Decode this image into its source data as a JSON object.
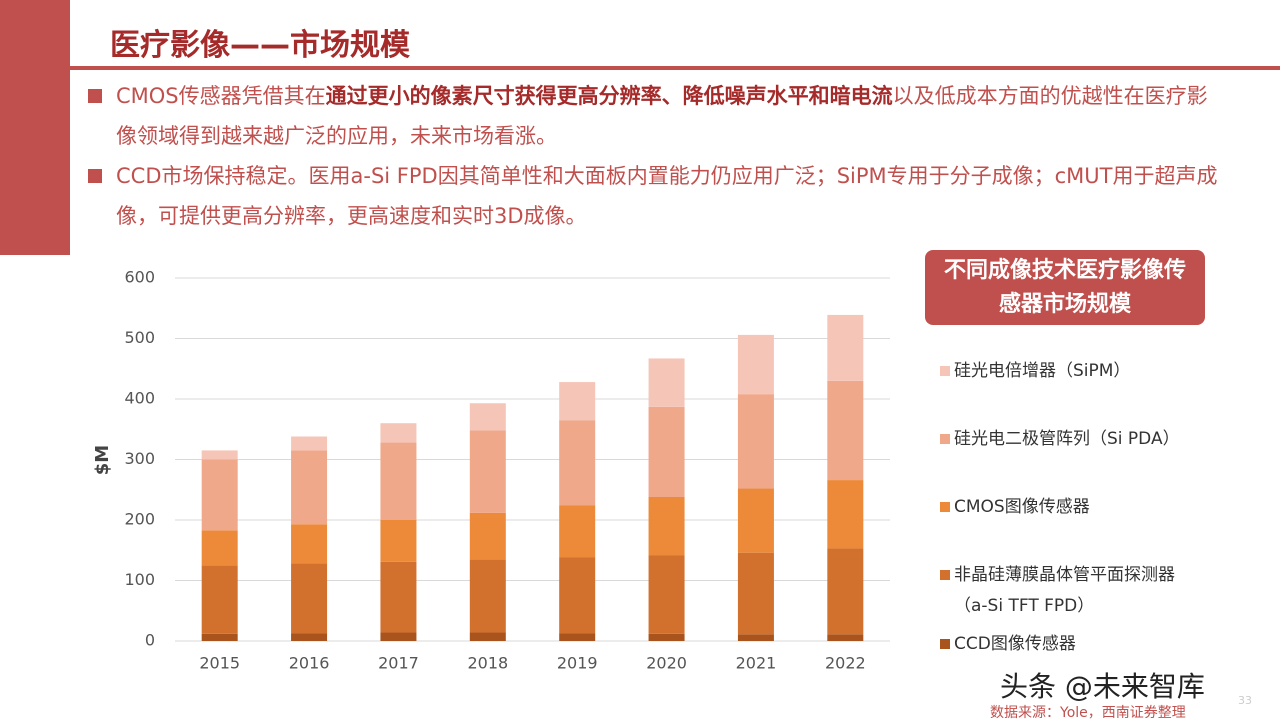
{
  "header": {
    "title": "医疗影像——市场规模"
  },
  "bullets": [
    [
      {
        "text": "CMOS传感器凭借其在",
        "bold": false
      },
      {
        "text": "通过更小的像素尺寸获得更高分辨率、降低噪声水平和暗电流",
        "bold": true
      },
      {
        "text": "以及低成本方面的优越性在医疗影像领域得到越来越广泛的应用，未来市场看涨。",
        "bold": false
      }
    ],
    [
      {
        "text": "CCD市场保持稳定。医用a-Si FPD因其简单性和大面板内置能力仍应用广泛；SiPM专用于分子成像；cMUT用于超声成像，可提供更高分辨率，更高速度和实时3D成像。",
        "bold": false
      }
    ]
  ],
  "chart_data": {
    "type": "stacked_bar",
    "legend_title": "不同成像技术医疗影像传感器市场规模",
    "ylabel": "$M",
    "categories": [
      "2015",
      "2016",
      "2017",
      "2018",
      "2019",
      "2020",
      "2021",
      "2022"
    ],
    "series": [
      {
        "name": "CCD图像传感器",
        "color": "#a9541d",
        "values": [
          12,
          13,
          14,
          14,
          13,
          12,
          11,
          11
        ]
      },
      {
        "name": "非晶硅薄膜晶体管平面探测器（a-Si TFT FPD）",
        "color": "#d2712e",
        "values": [
          113,
          115,
          117,
          121,
          125,
          130,
          135,
          142
        ]
      },
      {
        "name": "CMOS图像传感器",
        "color": "#ec8a3a",
        "values": [
          58,
          65,
          69,
          77,
          86,
          96,
          106,
          113
        ]
      },
      {
        "name": "硅光电二极管阵列（Si PDA）",
        "color": "#f0a88a",
        "values": [
          117,
          122,
          128,
          136,
          141,
          149,
          156,
          164
        ]
      },
      {
        "name": "硅光电倍增器（SiPM）",
        "color": "#f5c6b8",
        "values": [
          15,
          23,
          32,
          45,
          63,
          80,
          98,
          109
        ]
      }
    ],
    "ylim": [
      0,
      600
    ],
    "yticks": [
      0,
      100,
      200,
      300,
      400,
      500,
      600
    ],
    "grid": true
  },
  "footer": {
    "watermark": "头条 @未来智库",
    "source": "数据来源：Yole，西南证券整理",
    "page_number": "33"
  }
}
